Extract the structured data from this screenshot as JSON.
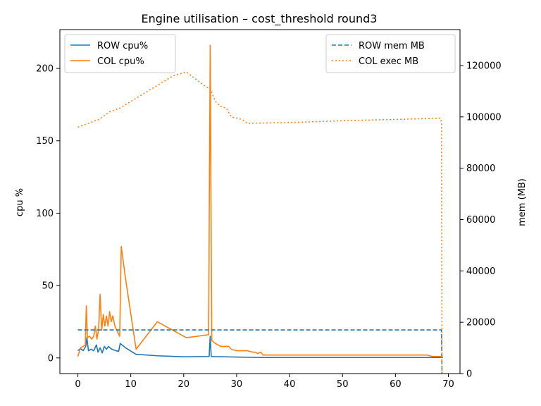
{
  "chart_data": {
    "type": "line",
    "title": "Engine utilisation – cost_threshold round3",
    "xlabel": "",
    "ylabel": "cpu %",
    "y2label": "mem (MB)",
    "xlim": [
      -3.4,
      72.2
    ],
    "ylim": [
      -10.8,
      226.8
    ],
    "y2lim": [
      0,
      134000
    ],
    "xticks": [
      0,
      10,
      20,
      30,
      40,
      50,
      60,
      70
    ],
    "yticks": [
      0,
      50,
      100,
      150,
      200
    ],
    "y2ticks": [
      0,
      20000,
      40000,
      60000,
      80000,
      100000,
      120000
    ],
    "legend_left": {
      "placement": "top-left",
      "entries": [
        "ROW cpu%",
        "COL cpu%"
      ]
    },
    "legend_right": {
      "placement": "top-right",
      "entries": [
        "ROW mem MB",
        "COL exec MB"
      ]
    },
    "series": [
      {
        "name": "ROW cpu%",
        "axis": "left",
        "style": "solid",
        "color": "#1f77b4",
        "points": [
          [
            0,
            5
          ],
          [
            0.5,
            6.5
          ],
          [
            1,
            5
          ],
          [
            1.5,
            8
          ],
          [
            1.7,
            14
          ],
          [
            2,
            5
          ],
          [
            2.5,
            6
          ],
          [
            3,
            5
          ],
          [
            3.5,
            9
          ],
          [
            3.8,
            4
          ],
          [
            4.2,
            7
          ],
          [
            4.6,
            3.5
          ],
          [
            5,
            8
          ],
          [
            5.4,
            6
          ],
          [
            5.8,
            8
          ],
          [
            6.2,
            6.5
          ],
          [
            6.8,
            5.5
          ],
          [
            7.2,
            5
          ],
          [
            7.7,
            4.5
          ],
          [
            8,
            10
          ],
          [
            9,
            7
          ],
          [
            11,
            2.5
          ],
          [
            15,
            1.5
          ],
          [
            20,
            0.8
          ],
          [
            24.8,
            1
          ],
          [
            25,
            15
          ],
          [
            25.2,
            1
          ],
          [
            30,
            0.6
          ],
          [
            35,
            0.3
          ],
          [
            69,
            0.3
          ]
        ]
      },
      {
        "name": "COL cpu%",
        "axis": "left",
        "style": "solid",
        "color": "#ff7f0e",
        "points": [
          [
            0,
            1
          ],
          [
            0.5,
            7
          ],
          [
            1,
            8
          ],
          [
            1.4,
            9
          ],
          [
            1.6,
            36
          ],
          [
            1.8,
            14
          ],
          [
            2.2,
            15
          ],
          [
            2.6,
            13
          ],
          [
            3,
            15
          ],
          [
            3.3,
            22
          ],
          [
            3.6,
            13
          ],
          [
            3.9,
            19
          ],
          [
            4.2,
            44
          ],
          [
            4.5,
            19
          ],
          [
            4.8,
            30
          ],
          [
            5.1,
            22
          ],
          [
            5.4,
            29
          ],
          [
            5.7,
            22
          ],
          [
            6,
            32
          ],
          [
            6.3,
            25
          ],
          [
            6.6,
            29
          ],
          [
            7,
            22
          ],
          [
            7.5,
            18
          ],
          [
            7.9,
            15
          ],
          [
            8.2,
            77
          ],
          [
            9,
            55
          ],
          [
            11,
            6
          ],
          [
            15,
            25
          ],
          [
            20.5,
            14
          ],
          [
            24.7,
            16
          ],
          [
            25,
            216
          ],
          [
            25.3,
            12
          ],
          [
            26,
            10
          ],
          [
            27,
            8
          ],
          [
            28.5,
            8
          ],
          [
            29,
            6
          ],
          [
            30,
            5
          ],
          [
            32,
            5
          ],
          [
            33,
            4
          ],
          [
            33.5,
            4
          ],
          [
            34,
            3
          ],
          [
            34.5,
            4
          ],
          [
            35,
            2
          ],
          [
            66,
            2
          ],
          [
            67,
            1
          ],
          [
            68,
            1
          ],
          [
            68.6,
            1
          ],
          [
            68.8,
            0
          ]
        ]
      },
      {
        "name": "ROW mem MB",
        "axis": "right",
        "style": "dashed",
        "color": "#1f77b4",
        "points": [
          [
            0,
            17000
          ],
          [
            68.7,
            17000
          ],
          [
            68.8,
            0
          ]
        ]
      },
      {
        "name": "COL exec MB",
        "axis": "right",
        "style": "dotted",
        "color": "#ff7f0e",
        "points": [
          [
            0,
            96000
          ],
          [
            2,
            97500
          ],
          [
            4,
            99000
          ],
          [
            6,
            102000
          ],
          [
            8,
            103500
          ],
          [
            10,
            106000
          ],
          [
            14,
            111000
          ],
          [
            18,
            116000
          ],
          [
            20.5,
            117500
          ],
          [
            24,
            112000
          ],
          [
            25,
            111000
          ],
          [
            26,
            106000
          ],
          [
            27,
            104000
          ],
          [
            28,
            103500
          ],
          [
            29,
            100000
          ],
          [
            30,
            99500
          ],
          [
            31,
            99000
          ],
          [
            32,
            97500
          ],
          [
            40,
            97800
          ],
          [
            50,
            98500
          ],
          [
            60,
            99000
          ],
          [
            68.5,
            99500
          ],
          [
            68.7,
            98000
          ],
          [
            68.8,
            0
          ]
        ]
      }
    ]
  }
}
